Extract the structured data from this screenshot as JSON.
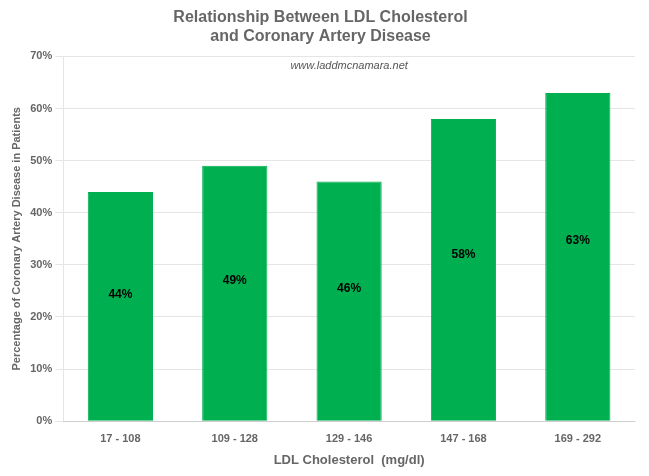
{
  "chart_data": {
    "type": "bar",
    "title": "Relationship Between LDL Cholesterol\nand Coronary Artery Disease",
    "xlabel": "LDL Cholesterol  (mg/dl)",
    "ylabel": "Percentage of Coronary Artery Disease in Patients",
    "annotations": [
      "www.laddmcnamara.net"
    ],
    "categories": [
      "17 - 108",
      "109 - 128",
      "129 - 146",
      "147 - 168",
      "169 - 292"
    ],
    "values": [
      44,
      49,
      46,
      58,
      63
    ],
    "value_labels": [
      "44%",
      "49%",
      "46%",
      "58%",
      "63%"
    ],
    "data_labels": true,
    "color": "#00b050",
    "ylim": [
      0,
      70
    ],
    "yticks": [
      {
        "value": 0,
        "label": "0%"
      },
      {
        "value": 10,
        "label": "10%"
      },
      {
        "value": 20,
        "label": "20%"
      },
      {
        "value": 30,
        "label": "30%"
      },
      {
        "value": 40,
        "label": "40%"
      },
      {
        "value": 50,
        "label": "50%"
      },
      {
        "value": 60,
        "label": "60%"
      },
      {
        "value": 70,
        "label": "70%"
      }
    ],
    "grid": true
  }
}
